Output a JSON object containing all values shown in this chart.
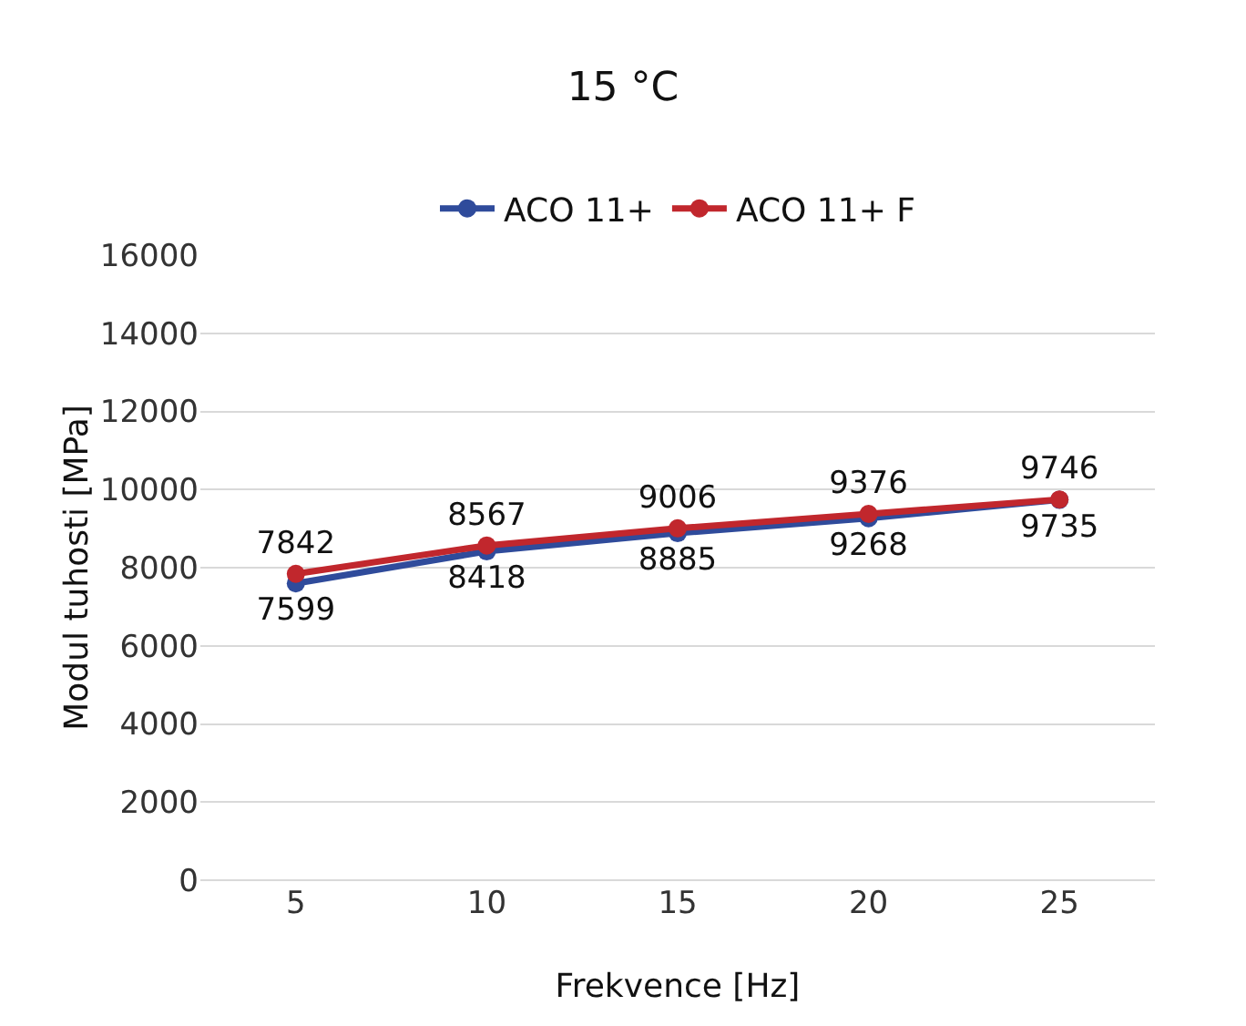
{
  "chart_data": {
    "type": "line",
    "title": "15 °C",
    "xlabel": "Frekvence [Hz]",
    "ylabel": "Modul tuhosti [MPa]",
    "categories": [
      "5",
      "10",
      "15",
      "20",
      "25"
    ],
    "series": [
      {
        "name": "ACO 11+",
        "color": "#2f4b9b",
        "values": [
          7599,
          8418,
          8885,
          9268,
          9735
        ]
      },
      {
        "name": "ACO 11+ F",
        "color": "#c1272d",
        "values": [
          7842,
          8567,
          9006,
          9376,
          9746
        ]
      }
    ],
    "ylim": [
      0,
      16000
    ],
    "yticks": [
      0,
      2000,
      4000,
      6000,
      8000,
      10000,
      12000,
      14000,
      16000
    ],
    "grid": "y",
    "legend": "top",
    "marker": "circle",
    "line_style": "solid",
    "data_labels": true
  }
}
